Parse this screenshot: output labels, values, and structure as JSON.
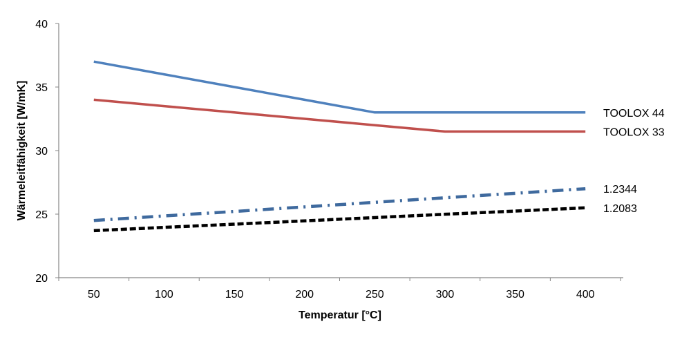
{
  "chart_data": {
    "type": "line",
    "title": "",
    "xlabel": "Temperatur [°C]",
    "ylabel": "Wärmeleitfähigkeit  [W/mK]",
    "categories": [
      50,
      100,
      150,
      200,
      250,
      300,
      350,
      400
    ],
    "ylim": [
      20,
      40
    ],
    "yticks": [
      20,
      25,
      30,
      35,
      40
    ],
    "grid": false,
    "legend": "right, labels at line ends",
    "series": [
      {
        "name": "TOOLOX 44",
        "color": "#4F81BD",
        "style": "solid",
        "values": [
          37,
          36,
          35,
          34,
          33,
          33,
          33,
          33
        ]
      },
      {
        "name": "TOOLOX 33",
        "color": "#C0504D",
        "style": "solid",
        "values": [
          34,
          33.5,
          33,
          32.5,
          32,
          31.5,
          31.5,
          31.5
        ]
      },
      {
        "name": "1.2344",
        "color": "#3F6A9E",
        "style": "dashdot",
        "values": [
          24.5,
          24.86,
          25.21,
          25.57,
          25.93,
          26.29,
          26.64,
          27
        ]
      },
      {
        "name": "1.2083",
        "color": "#000000",
        "style": "dash",
        "values": [
          23.7,
          23.96,
          24.21,
          24.47,
          24.73,
          24.99,
          25.24,
          25.5
        ]
      }
    ]
  }
}
